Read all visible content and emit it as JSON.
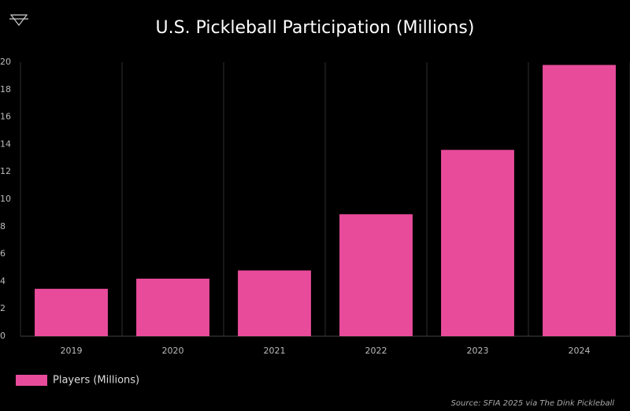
{
  "chart_data": {
    "type": "bar",
    "title": "U.S. Pickleball Participation (Millions)",
    "categories": [
      "2019",
      "2020",
      "2021",
      "2022",
      "2023",
      "2024"
    ],
    "series": [
      {
        "name": "Players (Millions)",
        "color": "#e94b9b",
        "values": [
          3.46,
          4.2,
          4.8,
          8.9,
          13.6,
          19.8
        ]
      }
    ],
    "ylim": [
      0,
      20
    ],
    "yticks": [
      0,
      2,
      4,
      6,
      8,
      10,
      12,
      14,
      16,
      18,
      20
    ],
    "grid": true,
    "legend": "bottom-left",
    "source": "Source: SFIA 2025 via The Dink Pickleball"
  }
}
